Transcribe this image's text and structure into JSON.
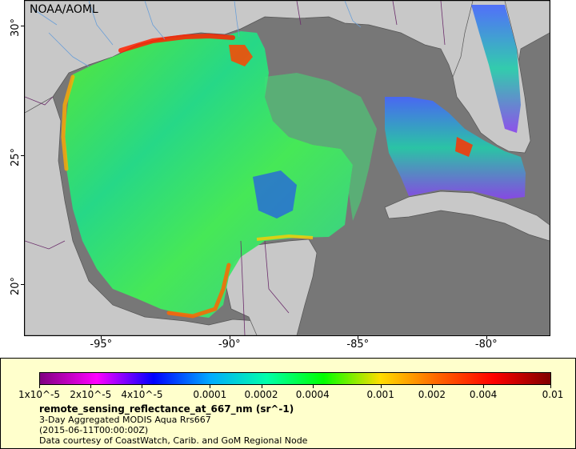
{
  "map": {
    "credit": "NOAA/AOML",
    "lat_ticks": [
      {
        "value": 30,
        "label": "30°"
      },
      {
        "value": 25,
        "label": "25°"
      },
      {
        "value": 20,
        "label": "20°"
      }
    ],
    "lon_ticks": [
      {
        "value": -95,
        "label": "-95°"
      },
      {
        "value": -90,
        "label": "-90°"
      },
      {
        "value": -85,
        "label": "-85°"
      },
      {
        "value": -80,
        "label": "-80°"
      }
    ],
    "colors": {
      "land": "#c8c8c8",
      "no_data": "#777777",
      "coastline": "#555555",
      "rivers": "#6a9fd8",
      "borders": "#6b2d6b"
    }
  },
  "legend": {
    "tick_labels": [
      "1x10^-5",
      "2x10^-5",
      "4x10^-5",
      "0.0001",
      "0.0002",
      "0.0004",
      "0.001",
      "0.002",
      "0.004",
      "0.01"
    ],
    "colormap": [
      "#800080",
      "#ff00ff",
      "#0000ff",
      "#00aaff",
      "#00ffaa",
      "#00ff00",
      "#ffdd00",
      "#ff6600",
      "#ff0000",
      "#800000"
    ],
    "variable": "remote_sensing_reflectance_at_667_nm (sr^-1)",
    "product": "3-Day Aggregated MODIS Aqua Rrs667",
    "date": "(2015-06-11T00:00:00Z)",
    "courtesy": "Data courtesy of CoastWatch, Carib. and GoM Regional Node"
  }
}
